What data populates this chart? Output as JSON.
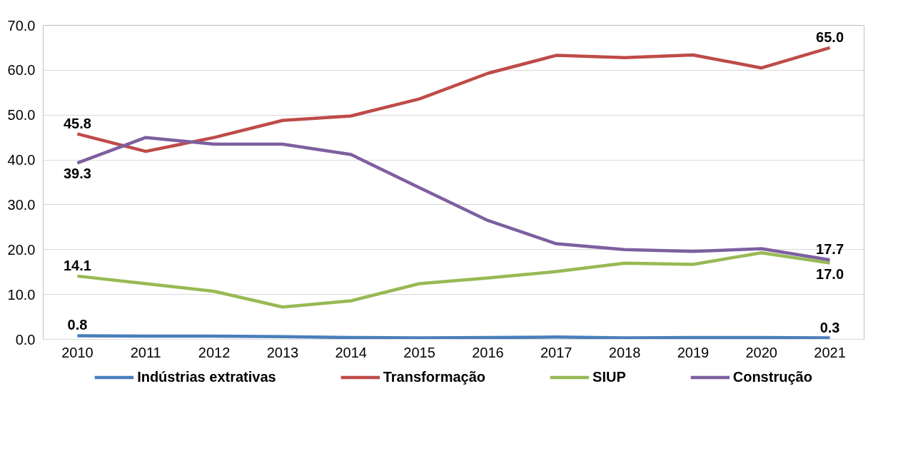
{
  "chart_data": {
    "type": "line",
    "categories": [
      "2010",
      "2011",
      "2012",
      "2013",
      "2014",
      "2015",
      "2016",
      "2017",
      "2018",
      "2019",
      "2020",
      "2021"
    ],
    "series": [
      {
        "name": "Indústrias extrativas",
        "color": "#4a7ebb",
        "values": [
          0.8,
          0.7,
          0.7,
          0.6,
          0.4,
          0.3,
          0.4,
          0.5,
          0.3,
          0.4,
          0.4,
          0.3
        ],
        "value_labels": [
          "0.8",
          null,
          null,
          null,
          null,
          null,
          null,
          null,
          null,
          null,
          null,
          "0.3"
        ]
      },
      {
        "name": "Transformação",
        "color": "#be4b48",
        "values": [
          45.8,
          41.9,
          45.0,
          48.8,
          49.8,
          53.6,
          59.3,
          63.3,
          62.8,
          63.4,
          60.5,
          65.0
        ],
        "value_labels": [
          "45.8",
          null,
          null,
          null,
          null,
          null,
          null,
          null,
          null,
          null,
          null,
          "65.0"
        ]
      },
      {
        "name": "SIUP",
        "color": "#98b954",
        "values": [
          14.1,
          12.4,
          10.7,
          7.2,
          8.6,
          12.4,
          13.7,
          15.1,
          17.0,
          16.7,
          19.3,
          17.0
        ],
        "value_labels": [
          "14.1",
          null,
          null,
          null,
          null,
          null,
          null,
          null,
          null,
          null,
          null,
          "17.0"
        ]
      },
      {
        "name": "Construção",
        "color": "#7d60a0",
        "values": [
          39.3,
          45.0,
          43.5,
          43.5,
          41.2,
          33.8,
          26.5,
          21.3,
          20.0,
          19.6,
          20.2,
          17.7
        ],
        "value_labels": [
          "39.3",
          null,
          null,
          null,
          null,
          null,
          null,
          null,
          null,
          null,
          null,
          "17.7"
        ]
      }
    ],
    "ylim": [
      0,
      70
    ],
    "yticks": [
      {
        "value": 0,
        "label": "0.0"
      },
      {
        "value": 10,
        "label": "10.0"
      },
      {
        "value": 20,
        "label": "20.0"
      },
      {
        "value": 30,
        "label": "30.0"
      },
      {
        "value": 40,
        "label": "40.0"
      },
      {
        "value": 50,
        "label": "50.0"
      },
      {
        "value": 60,
        "label": "60.0"
      },
      {
        "value": 70,
        "label": "70.0"
      }
    ],
    "grid": "y",
    "legend": "bottom",
    "line_style": "solid",
    "marker": "none"
  }
}
